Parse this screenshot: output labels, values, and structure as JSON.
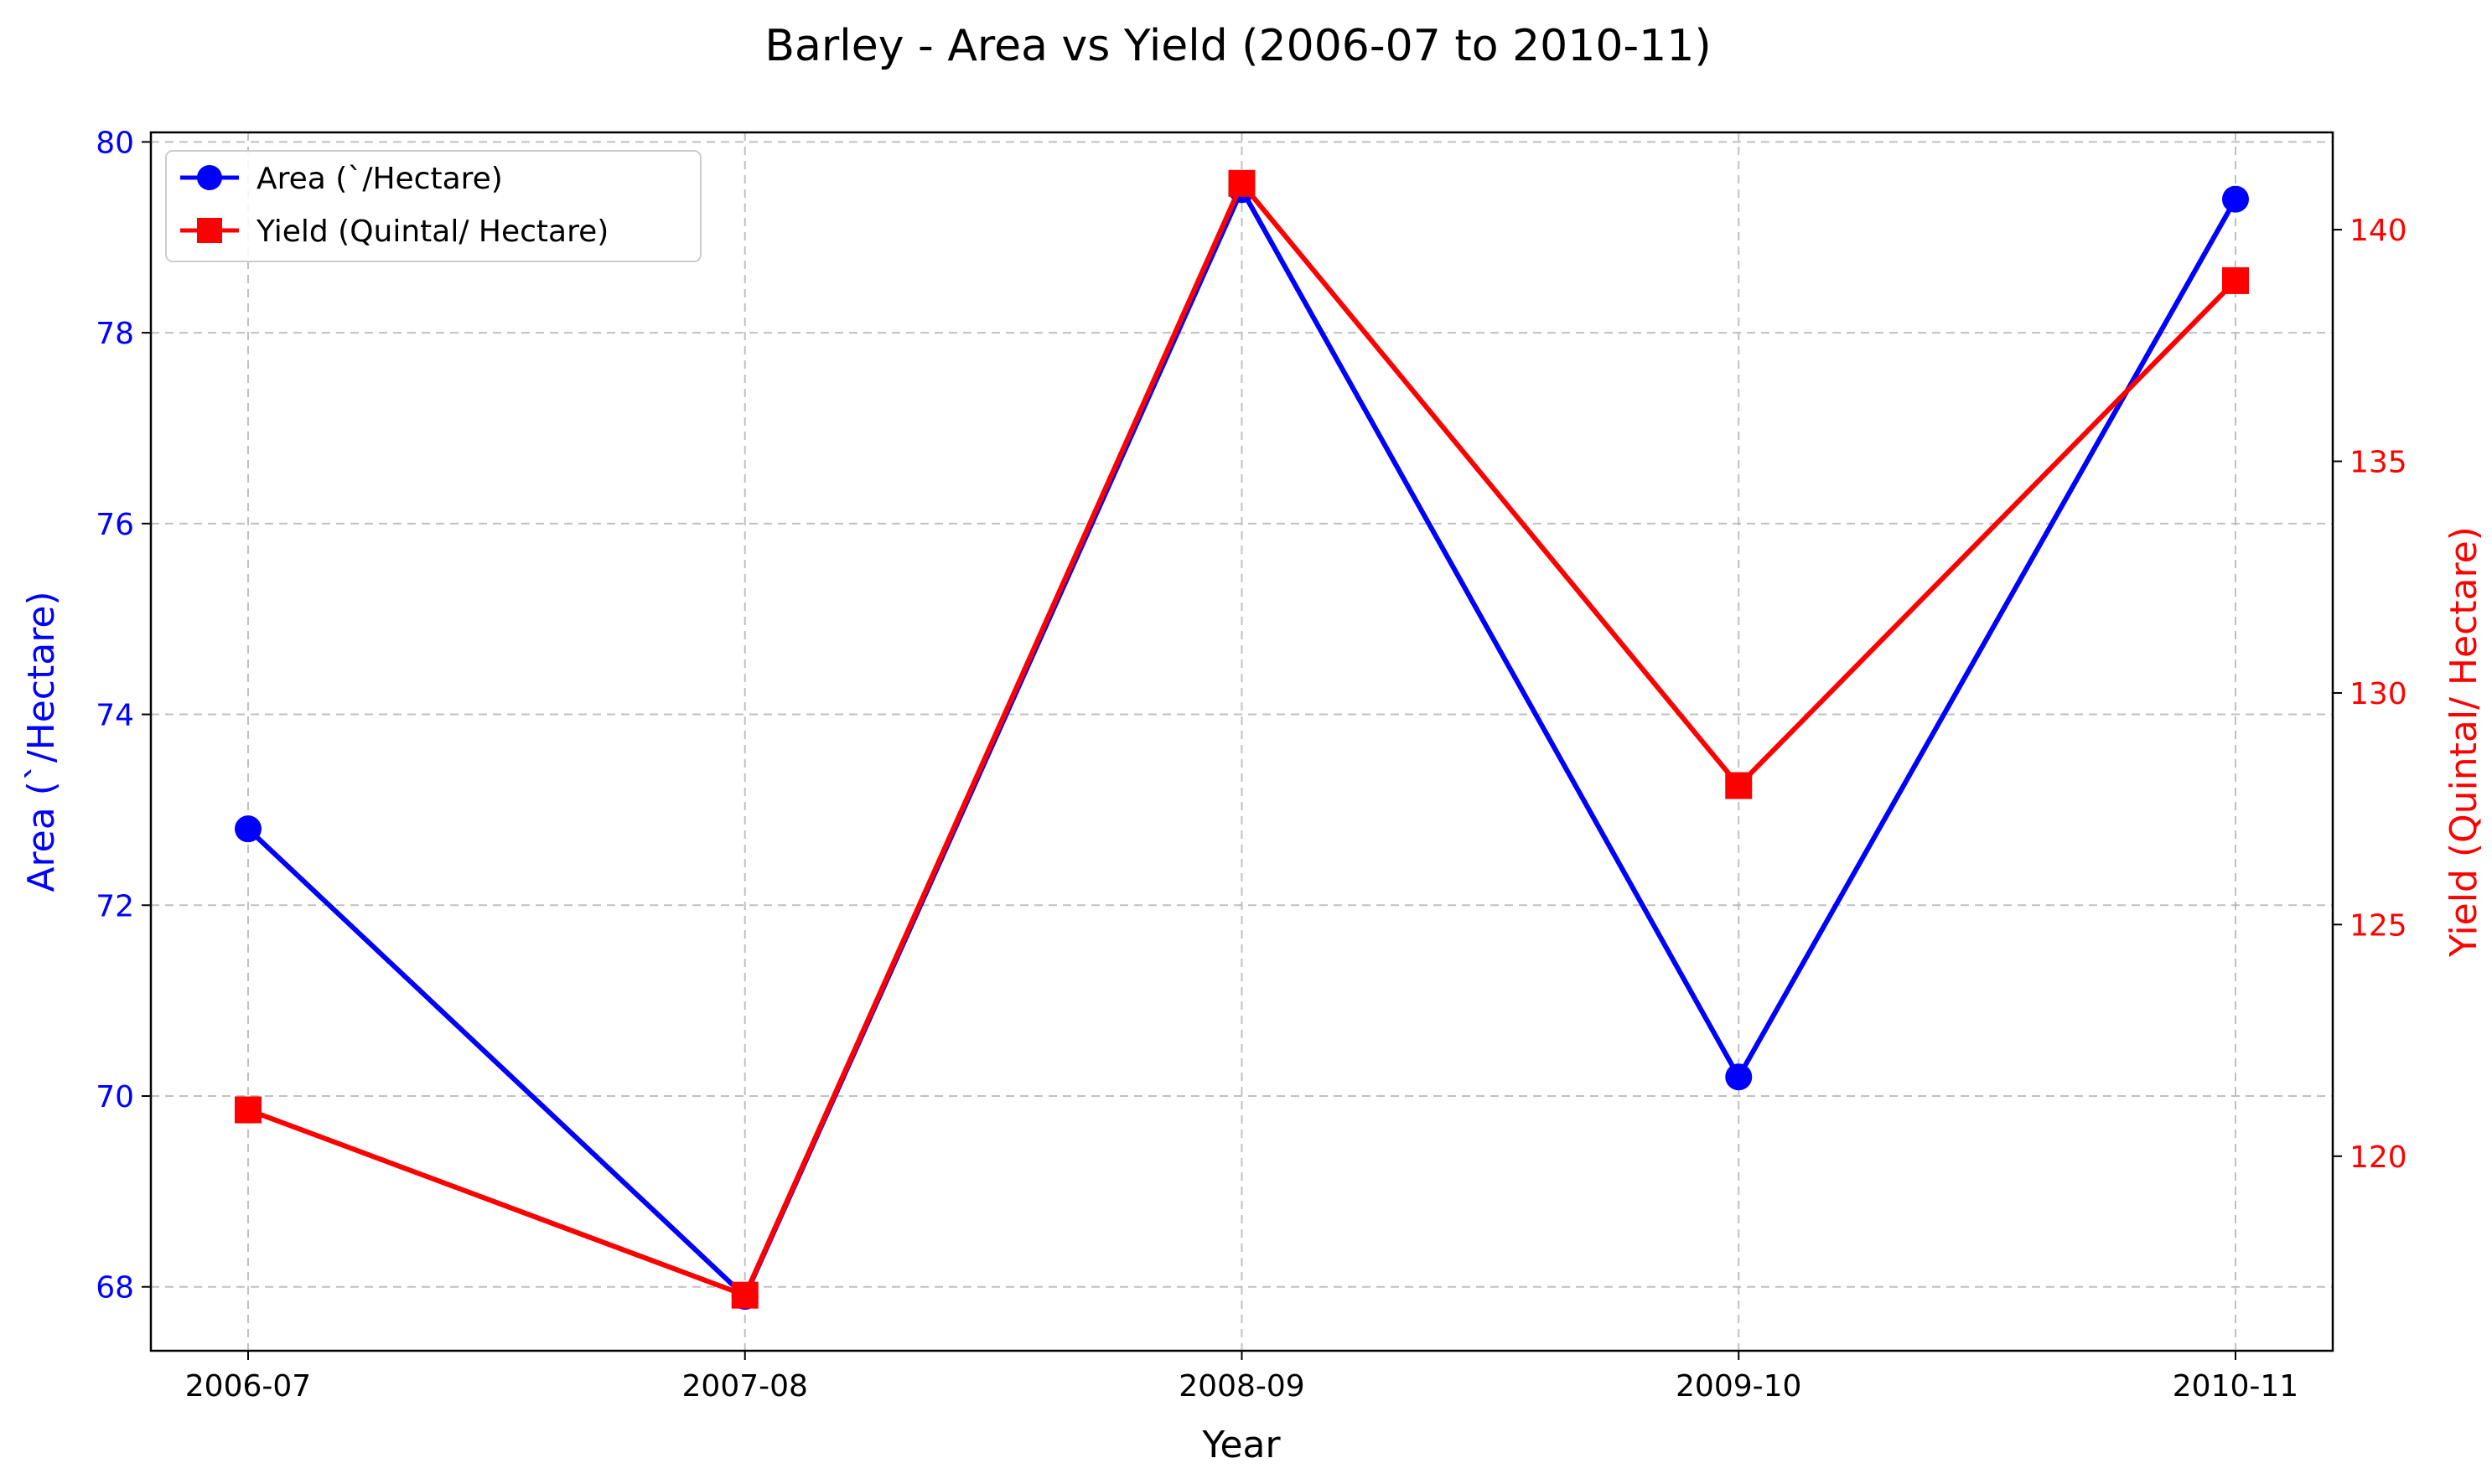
{
  "chart_data": {
    "type": "line",
    "title": "Barley - Area vs Yield (2006-07 to 2010-11)",
    "xlabel": "Year",
    "categories": [
      "2006-07",
      "2007-08",
      "2008-09",
      "2009-10",
      "2010-11"
    ],
    "y_left": {
      "label": "Area (`/Hectare)",
      "color": "#0000ff",
      "ticks": [
        68,
        70,
        72,
        74,
        76,
        78,
        80
      ],
      "range": [
        67.33,
        80.1
      ]
    },
    "y_right": {
      "label": "Yield (Quintal/ Hectare)",
      "color": "#ff0000",
      "ticks": [
        120,
        125,
        130,
        135,
        140
      ],
      "range": [
        115.8,
        142.1
      ]
    },
    "series": [
      {
        "name": "Area (`/Hectare)",
        "axis": "left",
        "color": "#0000ff",
        "marker": "circle",
        "values": [
          72.8,
          67.9,
          79.5,
          70.2,
          79.4
        ]
      },
      {
        "name": "Yield (Quintal/ Hectare)",
        "axis": "right",
        "color": "#ff0000",
        "marker": "square",
        "values": [
          121.0,
          117.0,
          141.0,
          128.0,
          138.9
        ]
      }
    ],
    "grid": true,
    "grid_style": "dashed",
    "legend_position": "top-left"
  }
}
